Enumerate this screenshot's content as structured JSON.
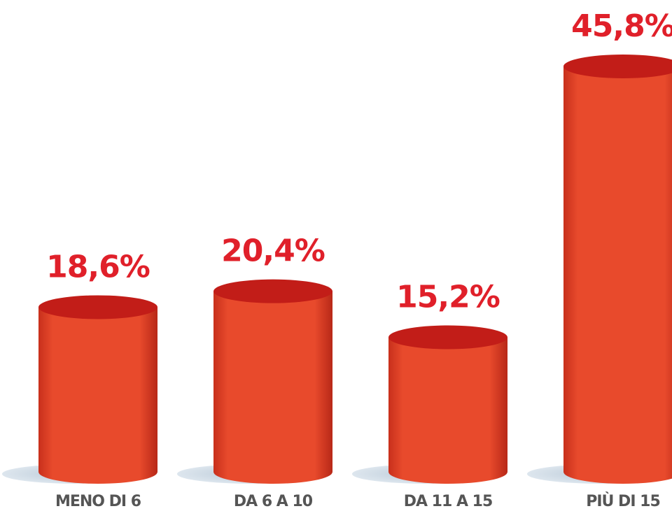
{
  "chart_data": {
    "type": "bar",
    "categories": [
      "MENO DI 6",
      "DA 6 A 10",
      "DA 11 A 15",
      "PIÙ DI 15"
    ],
    "values": [
      18.6,
      20.4,
      15.2,
      45.8
    ],
    "value_labels": [
      "18,6%",
      "20,4%",
      "15,2%",
      "45,8%"
    ],
    "color": "#e84a2c"
  }
}
